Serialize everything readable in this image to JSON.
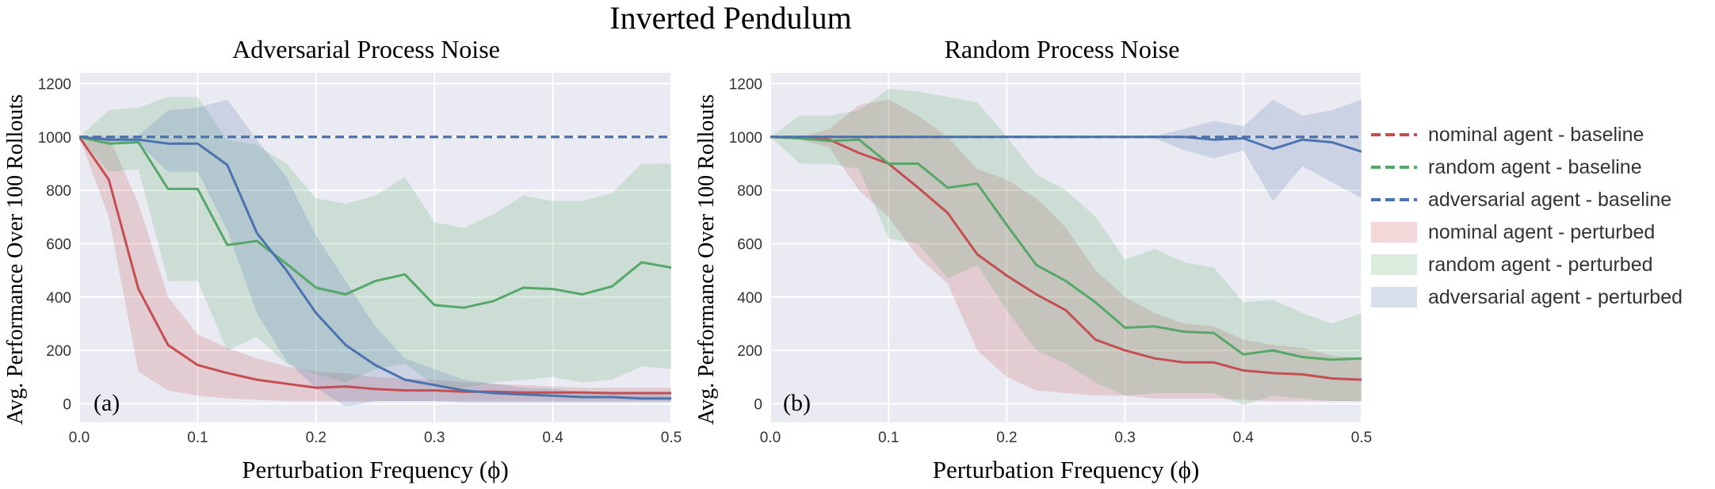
{
  "figure": {
    "title": "Inverted Pendulum"
  },
  "legend": {
    "placement": "right",
    "entries": [
      {
        "label": "nominal agent - baseline",
        "kind": "dashed-line",
        "color": "#c44e52"
      },
      {
        "label": "random agent - baseline",
        "kind": "dashed-line",
        "color": "#55a868"
      },
      {
        "label": "adversarial agent - baseline",
        "kind": "dashed-line",
        "color": "#4c72b0"
      },
      {
        "label": "nominal agent - perturbed",
        "kind": "band",
        "color": "#c44e52"
      },
      {
        "label": "random agent - perturbed",
        "kind": "band",
        "color": "#55a868"
      },
      {
        "label": "adversarial agent - perturbed",
        "kind": "band",
        "color": "#4c72b0"
      }
    ]
  },
  "chart_data": [
    {
      "type": "line",
      "panel_label": "(a)",
      "title": "Adversarial Process Noise",
      "xlabel": "Perturbation Frequency (ϕ)",
      "ylabel": "Avg. Performance Over 100 Rollouts",
      "xlim": [
        0,
        0.5
      ],
      "ylim": [
        -70,
        1240
      ],
      "xticks": [
        0.0,
        0.1,
        0.2,
        0.3,
        0.4,
        0.5
      ],
      "xtick_labels": [
        "0.0",
        "0.1",
        "0.2",
        "0.3",
        "0.4",
        "0.5"
      ],
      "yticks": [
        0,
        200,
        400,
        600,
        800,
        1000,
        1200
      ],
      "ytick_labels": [
        "0",
        "200",
        "400",
        "600",
        "800",
        "1000",
        "1200"
      ],
      "grid": true,
      "x": [
        0,
        0.025,
        0.05,
        0.075,
        0.1,
        0.125,
        0.15,
        0.175,
        0.2,
        0.225,
        0.25,
        0.275,
        0.3,
        0.325,
        0.35,
        0.375,
        0.4,
        0.425,
        0.45,
        0.475,
        0.5
      ],
      "baselines": [
        {
          "name": "nominal agent - baseline",
          "color": "#c44e52",
          "value": 1000
        },
        {
          "name": "random agent - baseline",
          "color": "#55a868",
          "value": 1000
        },
        {
          "name": "adversarial agent - baseline",
          "color": "#4c72b0",
          "value": 1000
        }
      ],
      "series": [
        {
          "name": "nominal agent - perturbed",
          "color": "#c44e52",
          "mean": [
            1000,
            840,
            430,
            220,
            145,
            115,
            90,
            75,
            60,
            65,
            55,
            50,
            50,
            45,
            45,
            42,
            42,
            42,
            40,
            40,
            40
          ],
          "lower": [
            1000,
            700,
            120,
            50,
            30,
            20,
            15,
            10,
            10,
            10,
            10,
            10,
            10,
            10,
            10,
            10,
            10,
            10,
            10,
            10,
            10
          ],
          "upper": [
            1000,
            1000,
            750,
            400,
            260,
            210,
            170,
            140,
            120,
            115,
            100,
            95,
            90,
            80,
            75,
            70,
            65,
            60,
            60,
            60,
            60
          ]
        },
        {
          "name": "random agent - perturbed",
          "color": "#55a868",
          "mean": [
            1000,
            975,
            980,
            805,
            805,
            595,
            610,
            525,
            435,
            410,
            460,
            485,
            370,
            360,
            385,
            435,
            430,
            410,
            440,
            530,
            510
          ],
          "lower": [
            1000,
            870,
            880,
            460,
            460,
            200,
            250,
            150,
            110,
            80,
            130,
            150,
            70,
            60,
            80,
            90,
            100,
            80,
            90,
            140,
            130
          ],
          "upper": [
            1000,
            1100,
            1110,
            1150,
            1150,
            990,
            970,
            900,
            770,
            750,
            780,
            850,
            680,
            660,
            710,
            780,
            760,
            760,
            790,
            900,
            900
          ]
        },
        {
          "name": "adversarial agent - perturbed",
          "color": "#4c72b0",
          "mean": [
            1000,
            990,
            990,
            975,
            975,
            895,
            640,
            500,
            340,
            220,
            145,
            90,
            70,
            50,
            40,
            35,
            30,
            25,
            25,
            20,
            20
          ],
          "lower": [
            1000,
            975,
            975,
            870,
            870,
            650,
            340,
            160,
            60,
            -10,
            10,
            10,
            10,
            5,
            5,
            5,
            5,
            5,
            5,
            5,
            5
          ],
          "upper": [
            1000,
            1005,
            1005,
            1100,
            1110,
            1140,
            990,
            850,
            630,
            460,
            290,
            170,
            130,
            90,
            75,
            60,
            55,
            45,
            45,
            40,
            40
          ]
        }
      ]
    },
    {
      "type": "line",
      "panel_label": "(b)",
      "title": "Random Process Noise",
      "xlabel": "Perturbation Frequency (ϕ)",
      "ylabel": "Avg. Performance Over 100 Rollouts",
      "xlim": [
        0,
        0.5
      ],
      "ylim": [
        -70,
        1240
      ],
      "xticks": [
        0.0,
        0.1,
        0.2,
        0.3,
        0.4,
        0.5
      ],
      "xtick_labels": [
        "0.0",
        "0.1",
        "0.2",
        "0.3",
        "0.4",
        "0.5"
      ],
      "yticks": [
        0,
        200,
        400,
        600,
        800,
        1000,
        1200
      ],
      "ytick_labels": [
        "0",
        "200",
        "400",
        "600",
        "800",
        "1000",
        "1200"
      ],
      "grid": true,
      "x": [
        0,
        0.025,
        0.05,
        0.075,
        0.1,
        0.125,
        0.15,
        0.175,
        0.2,
        0.225,
        0.25,
        0.275,
        0.3,
        0.325,
        0.35,
        0.375,
        0.4,
        0.425,
        0.45,
        0.475,
        0.5
      ],
      "baselines": [
        {
          "name": "nominal agent - baseline",
          "color": "#c44e52",
          "value": 1000
        },
        {
          "name": "random agent - baseline",
          "color": "#55a868",
          "value": 1000
        },
        {
          "name": "adversarial agent - baseline",
          "color": "#4c72b0",
          "value": 1000
        }
      ],
      "series": [
        {
          "name": "nominal agent - perturbed",
          "color": "#c44e52",
          "mean": [
            1000,
            995,
            990,
            940,
            900,
            810,
            715,
            560,
            480,
            410,
            350,
            240,
            200,
            170,
            155,
            155,
            125,
            115,
            110,
            95,
            90
          ],
          "lower": [
            1000,
            990,
            960,
            800,
            700,
            550,
            450,
            200,
            100,
            50,
            40,
            30,
            30,
            20,
            20,
            20,
            15,
            10,
            10,
            10,
            10
          ],
          "upper": [
            1000,
            1000,
            1030,
            1120,
            1140,
            1080,
            1000,
            880,
            840,
            770,
            660,
            500,
            400,
            340,
            300,
            290,
            240,
            220,
            210,
            180,
            170
          ]
        },
        {
          "name": "random agent - perturbed",
          "color": "#55a868",
          "mean": [
            1000,
            995,
            985,
            990,
            900,
            900,
            810,
            825,
            670,
            520,
            460,
            380,
            285,
            290,
            270,
            265,
            185,
            200,
            175,
            165,
            170
          ],
          "lower": [
            1000,
            900,
            900,
            880,
            620,
            600,
            470,
            520,
            350,
            200,
            150,
            80,
            30,
            40,
            40,
            40,
            -5,
            30,
            20,
            10,
            10
          ],
          "upper": [
            1000,
            1080,
            1080,
            1100,
            1180,
            1170,
            1150,
            1130,
            1000,
            860,
            800,
            700,
            540,
            580,
            530,
            510,
            380,
            390,
            340,
            300,
            340
          ]
        },
        {
          "name": "adversarial agent - perturbed",
          "color": "#4c72b0",
          "mean": [
            1000,
            1000,
            1000,
            1000,
            1000,
            1000,
            1000,
            1000,
            1000,
            1000,
            1000,
            1000,
            1000,
            1000,
            1000,
            990,
            995,
            955,
            990,
            980,
            945
          ],
          "lower": [
            1000,
            1000,
            1000,
            1000,
            1000,
            1000,
            1000,
            1000,
            1000,
            1000,
            1000,
            1000,
            1000,
            995,
            950,
            920,
            950,
            760,
            890,
            830,
            770
          ],
          "upper": [
            1000,
            1000,
            1000,
            1000,
            1000,
            1000,
            1000,
            1000,
            1000,
            1000,
            1000,
            1000,
            1000,
            1005,
            1030,
            1060,
            1040,
            1140,
            1080,
            1100,
            1140
          ]
        }
      ]
    }
  ]
}
